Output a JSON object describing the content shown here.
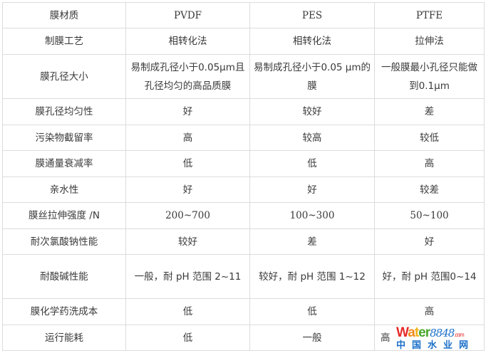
{
  "table": {
    "header": [
      "膜材质",
      "PVDF",
      "PES",
      "PTFE"
    ],
    "rows": [
      [
        "制膜工艺",
        "相转化法",
        "相转化法",
        "拉伸法"
      ],
      [
        "膜孔径大小",
        "易制成孔径小于0.05μm且孔径均匀的高品质膜",
        "易制成孔径小于0.05 μm的膜",
        "一般膜最小孔径只能做到0.1μm"
      ],
      [
        "膜孔径均匀性",
        "好",
        "较好",
        "差"
      ],
      [
        "污染物截留率",
        "高",
        "较高",
        "较低"
      ],
      [
        "膜通量衰减率",
        "低",
        "低",
        "高"
      ],
      [
        "亲水性",
        "好",
        "好",
        "较差"
      ],
      [
        "膜丝拉伸强度 /N",
        "200~700",
        "100~300",
        "50~100"
      ],
      [
        "耐次氯酸钠性能",
        "较好",
        "差",
        "好"
      ],
      [
        "耐酸碱性能",
        "一般，耐 pH 范围 2~11",
        "较好，耐 pH 范围 1~12",
        "好，耐 pH 范围0~14"
      ],
      [
        "膜化学药洗成本",
        "低",
        "低",
        "高"
      ],
      [
        "运行能耗",
        "低",
        "一般",
        "高"
      ]
    ]
  },
  "watermark": {
    "brand": "Water",
    "num": "8848",
    ".com": ".com",
    "cn": "中国水业网",
    "colors": {
      "W": "#e52b2b",
      "a": "#f08a1c",
      "t": "#f0b21c",
      "er": "#4aa82e",
      "num": "#1a6fc9"
    }
  }
}
